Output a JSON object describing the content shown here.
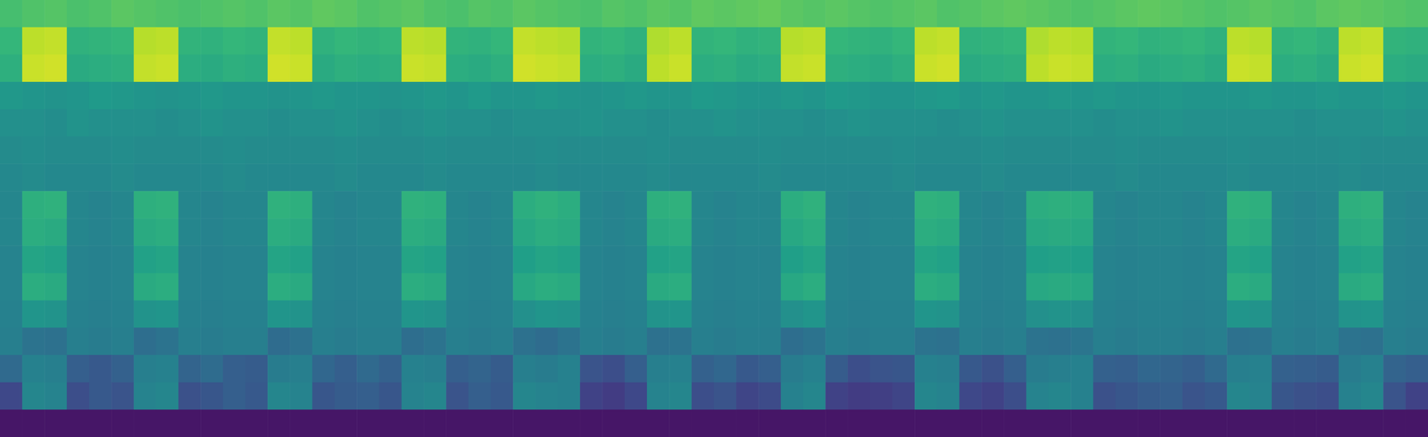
{
  "chart_data": {
    "type": "heatmap",
    "tick_labels": false,
    "grid": false,
    "color_range": [
      0,
      100
    ],
    "cells": [
      [
        70,
        72,
        73,
        71,
        72,
        74,
        73,
        72,
        71,
        72,
        73,
        72,
        74,
        73,
        75,
        74,
        72,
        73,
        74,
        72,
        71,
        73,
        72,
        74,
        73,
        72,
        71,
        73,
        72,
        74,
        73,
        75,
        74,
        75,
        76,
        74,
        73,
        74,
        73,
        72,
        73,
        74,
        72,
        73,
        74,
        75,
        74,
        73,
        72,
        73,
        74,
        75,
        74,
        73,
        72,
        73,
        74,
        73,
        72,
        74,
        75,
        74,
        73,
        72
      ],
      [
        66,
        90,
        91,
        64,
        65,
        66,
        89,
        90,
        65,
        64,
        66,
        65,
        91,
        90,
        64,
        66,
        65,
        66,
        90,
        89,
        65,
        64,
        66,
        91,
        90,
        89,
        65,
        66,
        64,
        88,
        90,
        65,
        66,
        64,
        65,
        89,
        90,
        66,
        65,
        64,
        66,
        90,
        91,
        64,
        65,
        66,
        88,
        90,
        89,
        65,
        66,
        64,
        65,
        66,
        64,
        90,
        89,
        65,
        66,
        64,
        90,
        91,
        65,
        64
      ],
      [
        63,
        92,
        93,
        61,
        62,
        63,
        91,
        92,
        62,
        61,
        63,
        62,
        93,
        92,
        61,
        63,
        62,
        63,
        92,
        91,
        62,
        61,
        63,
        93,
        92,
        91,
        62,
        63,
        61,
        90,
        92,
        62,
        63,
        61,
        62,
        91,
        92,
        63,
        62,
        61,
        63,
        92,
        93,
        61,
        62,
        63,
        90,
        92,
        91,
        62,
        63,
        61,
        62,
        63,
        61,
        92,
        91,
        62,
        63,
        61,
        92,
        93,
        62,
        61
      ],
      [
        53,
        52,
        51,
        52,
        54,
        53,
        52,
        51,
        52,
        53,
        52,
        52,
        51,
        52,
        53,
        52,
        52,
        51,
        52,
        53,
        52,
        54,
        52,
        52,
        53,
        52,
        51,
        52,
        53,
        52,
        52,
        54,
        53,
        52,
        52,
        53,
        52,
        54,
        53,
        52,
        52,
        53,
        54,
        52,
        53,
        52,
        52,
        53,
        52,
        53,
        52,
        52,
        53,
        52,
        52,
        52,
        53,
        52,
        52,
        53,
        52,
        52,
        53,
        52
      ],
      [
        50,
        50,
        49,
        51,
        50,
        50,
        50,
        49,
        50,
        51,
        50,
        50,
        49,
        50,
        50,
        51,
        50,
        49,
        50,
        51,
        50,
        50,
        49,
        50,
        50,
        50,
        51,
        50,
        50,
        49,
        50,
        50,
        51,
        50,
        50,
        50,
        49,
        50,
        51,
        50,
        50,
        50,
        49,
        50,
        51,
        50,
        50,
        50,
        50,
        49,
        50,
        50,
        51,
        50,
        50,
        50,
        50,
        50,
        49,
        50,
        50,
        50,
        51,
        50
      ],
      [
        48,
        49,
        48,
        48,
        48,
        49,
        48,
        48,
        48,
        48,
        49,
        48,
        48,
        48,
        48,
        49,
        48,
        48,
        48,
        49,
        48,
        48,
        48,
        48,
        49,
        48,
        48,
        48,
        48,
        49,
        48,
        48,
        48,
        48,
        49,
        48,
        48,
        48,
        48,
        48,
        49,
        48,
        48,
        48,
        49,
        48,
        48,
        48,
        48,
        48,
        49,
        48,
        48,
        48,
        48,
        49,
        48,
        48,
        48,
        48,
        49,
        48,
        48,
        48
      ],
      [
        47,
        48,
        47,
        47,
        47,
        48,
        47,
        47,
        47,
        47,
        48,
        47,
        47,
        47,
        47,
        48,
        47,
        47,
        47,
        48,
        47,
        47,
        47,
        47,
        48,
        47,
        47,
        47,
        47,
        48,
        47,
        47,
        47,
        47,
        48,
        47,
        47,
        47,
        47,
        47,
        48,
        47,
        47,
        47,
        48,
        47,
        47,
        47,
        47,
        47,
        48,
        47,
        47,
        47,
        47,
        48,
        47,
        47,
        47,
        47,
        48,
        47,
        47,
        47
      ],
      [
        46,
        63,
        64,
        46,
        45,
        46,
        63,
        64,
        46,
        45,
        46,
        46,
        64,
        63,
        46,
        45,
        46,
        46,
        64,
        63,
        46,
        45,
        46,
        62,
        64,
        62,
        46,
        45,
        46,
        63,
        64,
        46,
        45,
        46,
        46,
        62,
        64,
        46,
        45,
        46,
        46,
        64,
        63,
        46,
        45,
        46,
        62,
        63,
        62,
        46,
        45,
        46,
        46,
        45,
        46,
        64,
        63,
        46,
        45,
        46,
        63,
        64,
        46,
        45
      ],
      [
        46,
        62,
        61,
        46,
        45,
        46,
        61,
        62,
        46,
        45,
        46,
        46,
        62,
        61,
        46,
        45,
        46,
        46,
        62,
        61,
        46,
        45,
        46,
        60,
        62,
        61,
        46,
        45,
        46,
        61,
        62,
        46,
        45,
        46,
        46,
        60,
        62,
        46,
        45,
        46,
        46,
        62,
        61,
        46,
        45,
        46,
        60,
        61,
        60,
        46,
        45,
        46,
        46,
        45,
        46,
        62,
        61,
        46,
        45,
        46,
        61,
        62,
        46,
        45
      ],
      [
        45,
        58,
        57,
        45,
        44,
        45,
        57,
        58,
        45,
        44,
        45,
        45,
        58,
        57,
        45,
        44,
        45,
        45,
        58,
        57,
        45,
        44,
        45,
        56,
        58,
        57,
        45,
        44,
        45,
        57,
        58,
        45,
        44,
        45,
        45,
        56,
        58,
        45,
        44,
        45,
        45,
        58,
        57,
        45,
        44,
        45,
        56,
        57,
        56,
        45,
        44,
        45,
        45,
        44,
        45,
        58,
        57,
        45,
        44,
        45,
        57,
        58,
        45,
        44
      ],
      [
        45,
        62,
        61,
        45,
        44,
        45,
        61,
        62,
        45,
        44,
        45,
        45,
        62,
        61,
        45,
        44,
        45,
        45,
        62,
        61,
        45,
        44,
        45,
        60,
        62,
        61,
        45,
        44,
        45,
        61,
        62,
        45,
        44,
        45,
        45,
        60,
        62,
        45,
        44,
        45,
        45,
        62,
        61,
        45,
        44,
        45,
        60,
        61,
        60,
        45,
        44,
        45,
        45,
        44,
        45,
        62,
        61,
        45,
        44,
        45,
        61,
        62,
        45,
        44
      ],
      [
        44,
        52,
        51,
        44,
        43,
        44,
        51,
        52,
        44,
        43,
        44,
        44,
        52,
        51,
        44,
        43,
        44,
        44,
        52,
        51,
        44,
        43,
        44,
        50,
        52,
        51,
        44,
        43,
        44,
        51,
        52,
        44,
        43,
        44,
        44,
        50,
        52,
        44,
        43,
        44,
        44,
        52,
        51,
        44,
        43,
        44,
        50,
        51,
        50,
        44,
        43,
        44,
        44,
        43,
        44,
        52,
        51,
        44,
        43,
        44,
        51,
        52,
        44,
        43
      ],
      [
        43,
        38,
        37,
        43,
        42,
        43,
        36,
        38,
        43,
        42,
        43,
        43,
        35,
        37,
        43,
        42,
        43,
        43,
        36,
        38,
        43,
        42,
        43,
        37,
        35,
        38,
        43,
        42,
        43,
        37,
        38,
        43,
        42,
        43,
        43,
        36,
        38,
        43,
        42,
        43,
        43,
        38,
        37,
        43,
        42,
        43,
        38,
        37,
        39,
        43,
        42,
        43,
        43,
        42,
        43,
        37,
        38,
        43,
        42,
        43,
        38,
        37,
        43,
        42
      ],
      [
        34,
        44,
        43,
        30,
        28,
        31,
        43,
        44,
        32,
        35,
        30,
        29,
        42,
        43,
        33,
        30,
        34,
        31,
        44,
        43,
        30,
        32,
        29,
        43,
        42,
        44,
        26,
        24,
        30,
        43,
        44,
        31,
        33,
        28,
        30,
        42,
        44,
        29,
        24,
        26,
        27,
        44,
        43,
        28,
        25,
        30,
        42,
        43,
        44,
        31,
        30,
        33,
        32,
        30,
        34,
        43,
        44,
        31,
        30,
        29,
        42,
        44,
        32,
        30
      ],
      [
        22,
        46,
        45,
        24,
        28,
        26,
        45,
        46,
        25,
        27,
        30,
        28,
        46,
        45,
        27,
        29,
        30,
        27,
        45,
        46,
        26,
        30,
        28,
        46,
        45,
        44,
        20,
        18,
        22,
        45,
        46,
        24,
        26,
        21,
        23,
        44,
        46,
        20,
        18,
        19,
        21,
        46,
        45,
        22,
        20,
        24,
        45,
        46,
        44,
        25,
        27,
        29,
        30,
        26,
        28,
        46,
        45,
        27,
        25,
        24,
        44,
        46,
        26,
        20
      ],
      [
        6,
        6,
        6,
        6,
        6,
        6,
        6,
        6,
        6,
        6,
        6,
        6,
        6,
        6,
        6,
        6,
        6,
        6,
        6,
        6,
        6,
        6,
        6,
        6,
        6,
        6,
        6,
        6,
        6,
        6,
        6,
        6,
        6,
        6,
        6,
        6,
        6,
        6,
        6,
        6,
        6,
        6,
        6,
        6,
        6,
        6,
        6,
        6,
        6,
        6,
        6,
        6,
        6,
        6,
        6,
        6,
        6,
        6,
        6,
        6,
        6,
        6,
        6,
        6
      ]
    ]
  }
}
